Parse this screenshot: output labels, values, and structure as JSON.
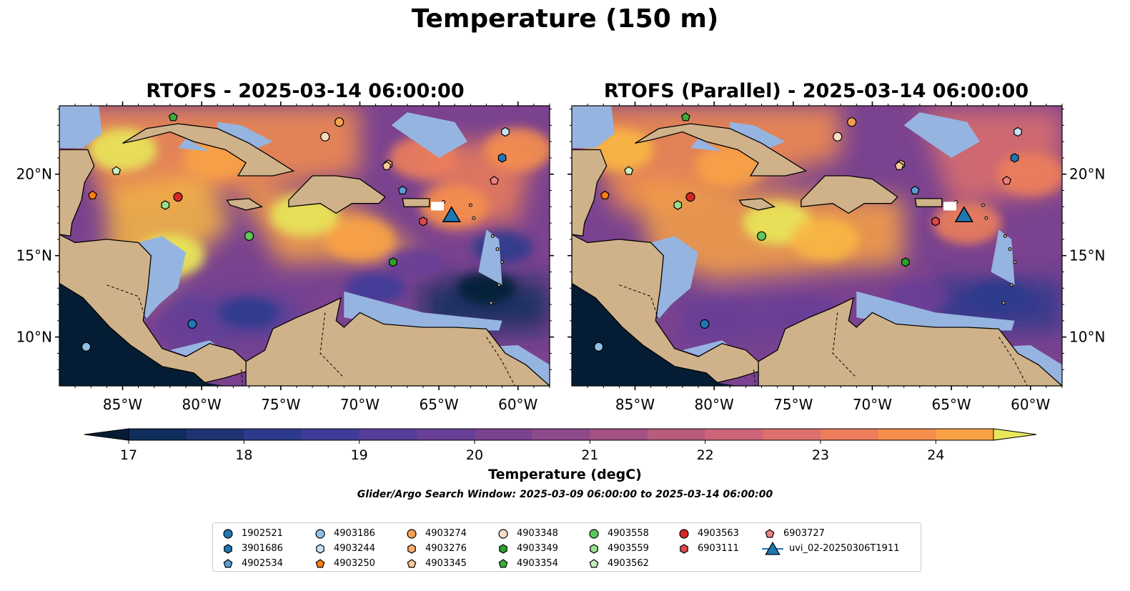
{
  "figure": {
    "title": "Temperature (150 m)",
    "panels": [
      {
        "title": "RTOFS - 2025-03-14 06:00:00"
      },
      {
        "title": "RTOFS (Parallel) - 2025-03-14 06:00:00"
      }
    ],
    "colorbar": {
      "label": "Temperature (degC)",
      "ticks": [
        "17",
        "18",
        "19",
        "20",
        "21",
        "22",
        "23",
        "24"
      ],
      "levels": [
        17,
        17.5,
        18,
        18.5,
        19,
        19.5,
        20,
        20.5,
        21,
        21.5,
        22,
        22.5,
        23,
        23.5,
        24,
        24.5
      ],
      "extend": "both",
      "colors": [
        "#051d34",
        "#0f2d5c",
        "#1f3272",
        "#2c3a8c",
        "#3f3c98",
        "#553e9a",
        "#683f96",
        "#7a428f",
        "#8e4a8a",
        "#a45183",
        "#b85c7e",
        "#cc6577",
        "#dd706d",
        "#ec7e5b",
        "#f58e4c",
        "#f8a245",
        "#f8b742",
        "#f4cd46",
        "#e8e75a"
      ]
    },
    "window_note": "Glider/Argo Search Window: 2025-03-09 06:00:00 to 2025-03-14 06:00:00",
    "x_ticks": [
      "85°W",
      "80°W",
      "75°W",
      "70°W",
      "65°W",
      "60°W"
    ],
    "y_ticks": [
      "20°N",
      "15°N",
      "10°N"
    ]
  },
  "legend": {
    "columns": [
      [
        {
          "label": "1902521",
          "marker": "circle",
          "color": "#1f77b4"
        },
        {
          "label": "3901686",
          "marker": "hexagon",
          "color": "#1f77b4"
        },
        {
          "label": "4902534",
          "marker": "pentagon",
          "color": "#5a9fd4"
        }
      ],
      [
        {
          "label": "4903186",
          "marker": "circle",
          "color": "#8ec0e8"
        },
        {
          "label": "4903244",
          "marker": "hexagon",
          "color": "#c6e2f7"
        },
        {
          "label": "4903250",
          "marker": "pentagon",
          "color": "#ff7f0e"
        }
      ],
      [
        {
          "label": "4903274",
          "marker": "circle",
          "color": "#f4a04f"
        },
        {
          "label": "4903276",
          "marker": "hexagon",
          "color": "#fdad6b"
        },
        {
          "label": "4903345",
          "marker": "pentagon",
          "color": "#fdc999"
        }
      ],
      [
        {
          "label": "4903348",
          "marker": "circle",
          "color": "#f9dcc4"
        },
        {
          "label": "4903349",
          "marker": "hexagon",
          "color": "#2ca02c"
        },
        {
          "label": "4903354",
          "marker": "pentagon",
          "color": "#3cae3c"
        }
      ],
      [
        {
          "label": "4903558",
          "marker": "circle",
          "color": "#5cc85c"
        },
        {
          "label": "4903559",
          "marker": "hexagon",
          "color": "#98df8a"
        },
        {
          "label": "4903562",
          "marker": "pentagon",
          "color": "#c7f0c0"
        }
      ],
      [
        {
          "label": "4903563",
          "marker": "circle",
          "color": "#d62728"
        },
        {
          "label": "6903111",
          "marker": "hexagon",
          "color": "#e0474a"
        }
      ],
      [
        {
          "label": "6903727",
          "marker": "pentagon",
          "color": "#f08080"
        },
        {
          "label": "uvi_02-20250306T1911",
          "marker": "triangle",
          "color": "#1f77b4"
        }
      ]
    ]
  },
  "chart_data": {
    "type": "heatmap",
    "title": "Temperature (150 m)",
    "variable": "Temperature (degC)",
    "depth_m": 150,
    "projection": "PlateCarree",
    "xlim": [
      -89,
      -58
    ],
    "ylim": [
      7,
      24.2
    ],
    "colorbar_range": [
      17,
      24.5
    ],
    "colormap": "thermal",
    "panels": [
      {
        "title": "RTOFS - 2025-03-14 06:00:00",
        "y_tick_side": "left",
        "hotspots": [
          {
            "lon": -85,
            "lat": 21.5,
            "temp": 24.5
          },
          {
            "lon": -79,
            "lat": 21,
            "temp": 23.5
          },
          {
            "lon": -82,
            "lat": 15,
            "temp": 24.5
          },
          {
            "lon": -73.5,
            "lat": 17.5,
            "temp": 24.5
          },
          {
            "lon": -70,
            "lat": 16,
            "temp": 23.5
          },
          {
            "lon": -64,
            "lat": 18,
            "temp": 23
          },
          {
            "lon": -66,
            "lat": 21,
            "temp": 22.5
          },
          {
            "lon": -60,
            "lat": 21.5,
            "temp": 23
          }
        ],
        "coldspots": [
          {
            "lon": -62,
            "lat": 13,
            "temp": 17
          },
          {
            "lon": -61,
            "lat": 15.5,
            "temp": 18.5
          },
          {
            "lon": -77,
            "lat": 11.5,
            "temp": 18.5
          },
          {
            "lon": -81,
            "lat": 10.5,
            "temp": 19.5
          },
          {
            "lon": -66.5,
            "lat": 14.5,
            "temp": 19.5
          },
          {
            "lon": -69,
            "lat": 13,
            "temp": 19
          }
        ]
      },
      {
        "title": "RTOFS (Parallel) - 2025-03-14 06:00:00",
        "y_tick_side": "right",
        "hotspots": [
          {
            "lon": -86,
            "lat": 21.5,
            "temp": 24
          },
          {
            "lon": -76,
            "lat": 17,
            "temp": 24.5
          },
          {
            "lon": -79,
            "lat": 20.5,
            "temp": 23.5
          },
          {
            "lon": -73,
            "lat": 16,
            "temp": 24
          },
          {
            "lon": -64,
            "lat": 17,
            "temp": 22.5
          },
          {
            "lon": -60,
            "lat": 20,
            "temp": 22.5
          }
        ],
        "coldspots": [
          {
            "lon": -62,
            "lat": 12.5,
            "temp": 18.5
          },
          {
            "lon": -74,
            "lat": 11.5,
            "temp": 19.5
          },
          {
            "lon": -80,
            "lat": 11,
            "temp": 19.5
          },
          {
            "lon": -67,
            "lat": 12.5,
            "temp": 19.5
          }
        ]
      }
    ],
    "platforms": [
      {
        "id": "1902521",
        "lon": -80.6,
        "lat": 10.8
      },
      {
        "id": "3901686",
        "lon": -61,
        "lat": 21
      },
      {
        "id": "4902534",
        "lon": -67.3,
        "lat": 19
      },
      {
        "id": "4903186",
        "lon": -87.3,
        "lat": 9.4
      },
      {
        "id": "4903244",
        "lon": -60.8,
        "lat": 22.6
      },
      {
        "id": "4903250",
        "lon": -86.9,
        "lat": 18.7
      },
      {
        "id": "4903274",
        "lon": -71.3,
        "lat": 23.2
      },
      {
        "id": "4903276",
        "lon": -68.2,
        "lat": 20.6
      },
      {
        "id": "4903345",
        "lon": -68.3,
        "lat": 20.5
      },
      {
        "id": "4903348",
        "lon": -72.2,
        "lat": 22.3
      },
      {
        "id": "4903349",
        "lon": -67.9,
        "lat": 14.6
      },
      {
        "id": "4903354",
        "lon": -81.8,
        "lat": 23.5
      },
      {
        "id": "4903558",
        "lon": -77,
        "lat": 16.2
      },
      {
        "id": "4903559",
        "lon": -82.3,
        "lat": 18.1
      },
      {
        "id": "4903562",
        "lon": -85.4,
        "lat": 20.2
      },
      {
        "id": "4903563",
        "lon": -81.5,
        "lat": 18.6
      },
      {
        "id": "6903111",
        "lon": -66,
        "lat": 17.1
      },
      {
        "id": "6903727",
        "lon": -61.5,
        "lat": 19.6
      },
      {
        "id": "uvi_02-20250306T1911",
        "lon": -64.2,
        "lat": 17.5
      }
    ]
  }
}
